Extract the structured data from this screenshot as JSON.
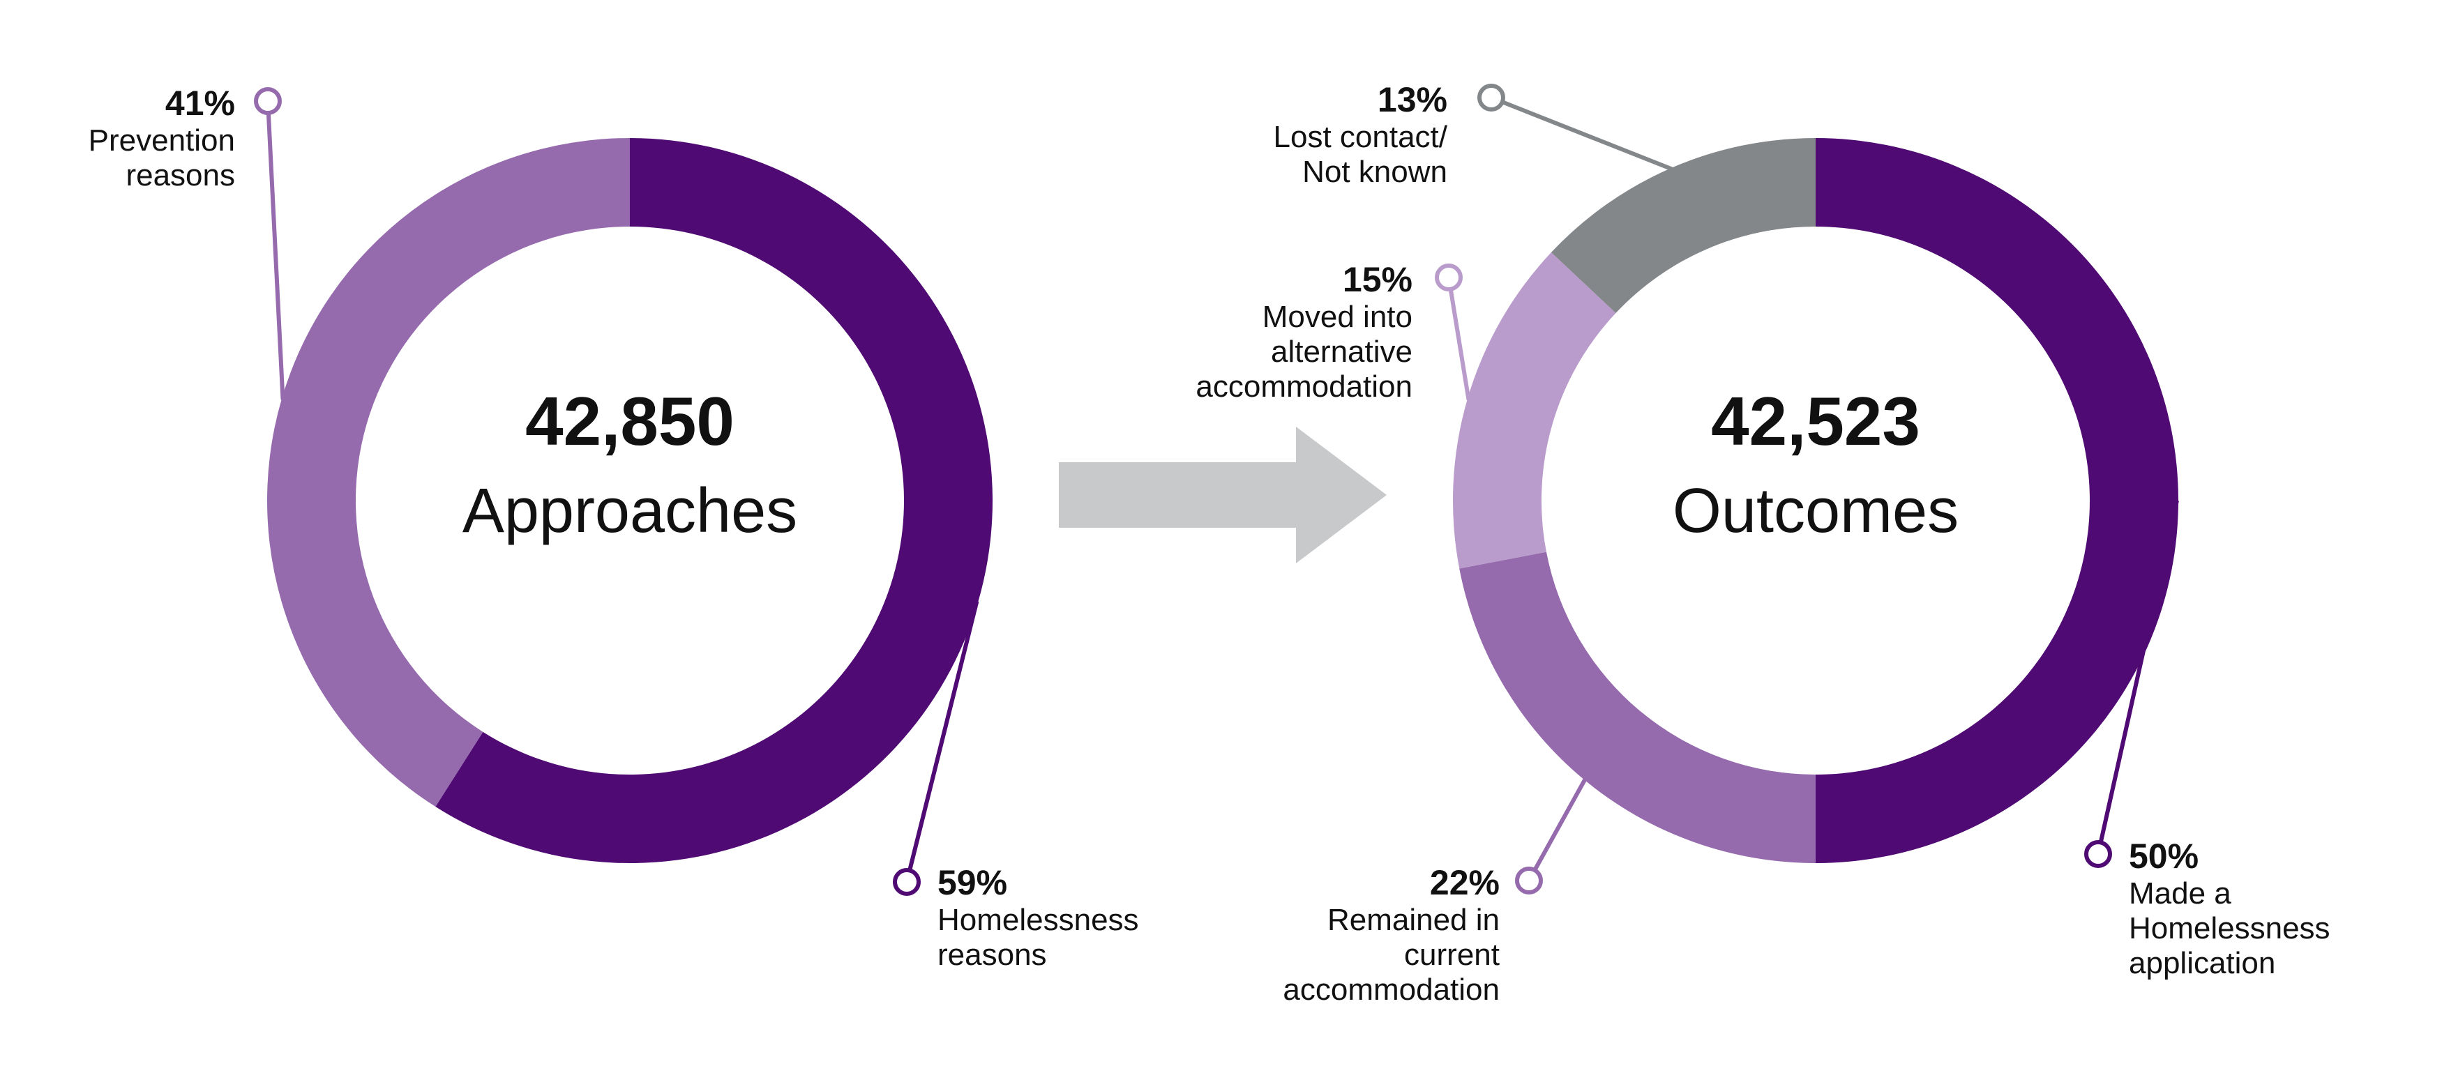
{
  "chart_data": [
    {
      "type": "donut",
      "center_value": "42,850",
      "center_label": "Approaches",
      "slices": [
        {
          "name": "Homelessness reasons",
          "label_lines": [
            "Homelessness",
            "reasons"
          ],
          "value": 59,
          "pct_label": "59%",
          "color": "#4f0a73"
        },
        {
          "name": "Prevention reasons",
          "label_lines": [
            "Prevention",
            "reasons"
          ],
          "value": 41,
          "pct_label": "41%",
          "color": "#956bae"
        }
      ]
    },
    {
      "type": "donut",
      "center_value": "42,523",
      "center_label": "Outcomes",
      "slices": [
        {
          "name": "Made a Homelessness application",
          "label_lines": [
            "Made a",
            "Homelessness",
            "application"
          ],
          "value": 50,
          "pct_label": "50%",
          "color": "#4f0a73"
        },
        {
          "name": "Remained in current accommodation",
          "label_lines": [
            "Remained in",
            "current",
            "accommodation"
          ],
          "value": 22,
          "pct_label": "22%",
          "color": "#956bae"
        },
        {
          "name": "Moved into alternative accommodation",
          "label_lines": [
            "Moved into",
            "alternative",
            "accommodation"
          ],
          "value": 15,
          "pct_label": "15%",
          "color": "#b99ccb"
        },
        {
          "name": "Lost contact/ Not known",
          "label_lines": [
            "Lost contact/",
            "Not known"
          ],
          "value": 13,
          "pct_label": "13%",
          "color": "#84878a"
        }
      ]
    }
  ],
  "arrow": {
    "color": "#c8c9ca"
  }
}
